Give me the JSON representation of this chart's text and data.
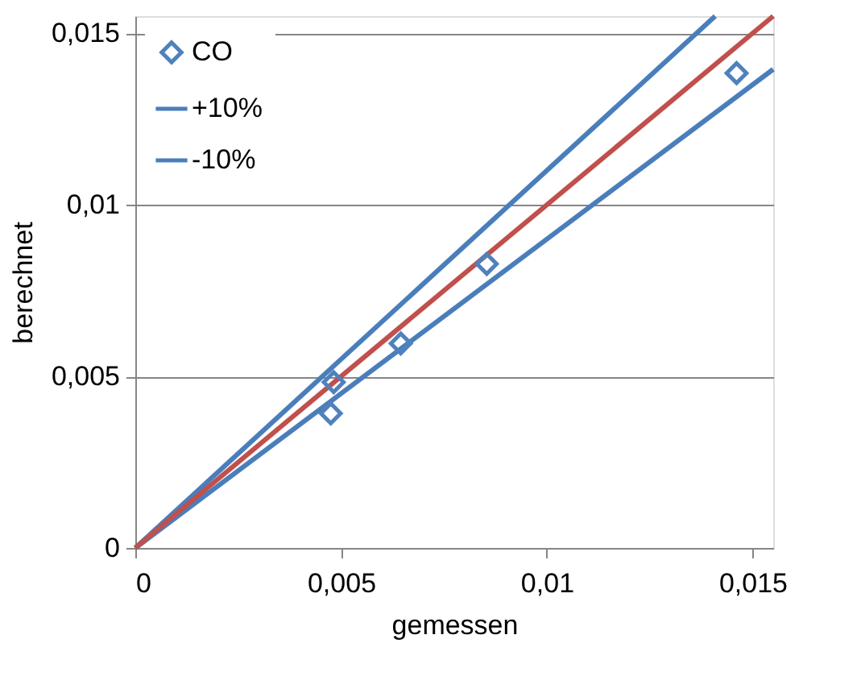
{
  "chart_data": {
    "type": "scatter",
    "xlabel": "gemessen",
    "ylabel": "berechnet",
    "xlim": [
      0,
      0.0155
    ],
    "ylim": [
      0,
      0.0155
    ],
    "xticks": [
      {
        "value": 0,
        "label": "0"
      },
      {
        "value": 0.005,
        "label": "0,005"
      },
      {
        "value": 0.01,
        "label": "0,01"
      },
      {
        "value": 0.015,
        "label": "0,015"
      }
    ],
    "yticks": [
      {
        "value": 0,
        "label": "0"
      },
      {
        "value": 0.005,
        "label": "0,005"
      },
      {
        "value": 0.01,
        "label": "0,01"
      },
      {
        "value": 0.015,
        "label": "0,015"
      }
    ],
    "grid": "y",
    "legend": "top left",
    "series": [
      {
        "name": "CO",
        "marker": "diamond",
        "color": "#4f81bd",
        "x": [
          0.00475,
          0.00482,
          0.00645,
          0.00854,
          0.01461
        ],
        "values": [
          0.00392,
          0.00483,
          0.00596,
          0.00828,
          0.01384
        ]
      },
      {
        "name": "+10%",
        "type": "line",
        "color": "#4a7ebb",
        "x": [
          0,
          0.01409
        ],
        "values": [
          0,
          0.0155
        ]
      },
      {
        "name": "-10%",
        "type": "line",
        "color": "#4a7ebb",
        "x": [
          0,
          0.0155
        ],
        "values": [
          0,
          0.01395
        ]
      },
      {
        "type": "line",
        "color": "#c0504d",
        "x": [
          0,
          0.0155
        ],
        "values": [
          0,
          0.0155
        ]
      }
    ]
  }
}
